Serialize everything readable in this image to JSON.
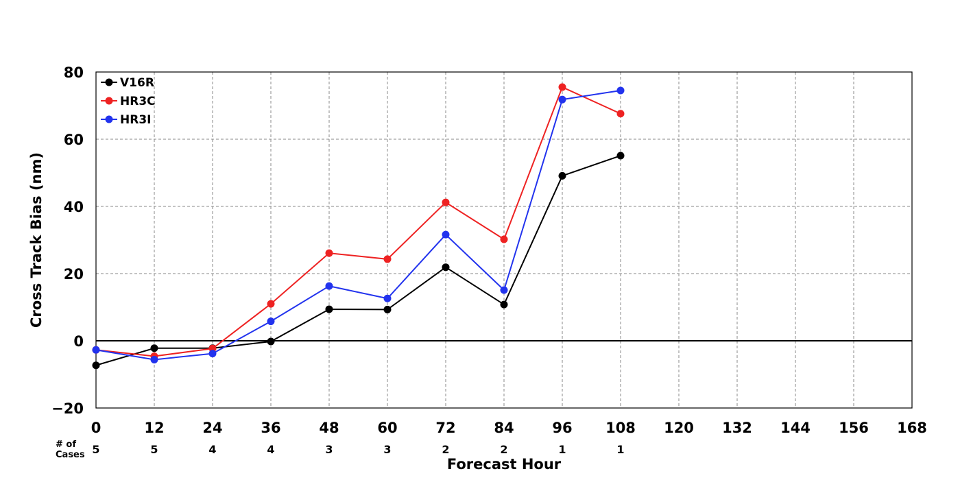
{
  "chart_data": {
    "type": "line",
    "title": "",
    "xlabel": "Forecast Hour",
    "ylabel": "Cross Track Bias (nm)",
    "xlim": [
      0,
      168
    ],
    "ylim": [
      -20,
      80
    ],
    "x_ticks": [
      0,
      12,
      24,
      36,
      48,
      60,
      72,
      84,
      96,
      108,
      120,
      132,
      144,
      156,
      168
    ],
    "y_ticks": [
      -20,
      0,
      20,
      40,
      60,
      80
    ],
    "y_tick_labels": [
      "−20",
      "0",
      "20",
      "40",
      "60",
      "80"
    ],
    "grid": true,
    "legend_position": "top-left",
    "cases_label": "# of Cases",
    "cases_label_lines": [
      "# of",
      "Cases"
    ],
    "case_counts": [
      {
        "x": 0,
        "label": "5"
      },
      {
        "x": 12,
        "label": "5"
      },
      {
        "x": 24,
        "label": "4"
      },
      {
        "x": 36,
        "label": "4"
      },
      {
        "x": 48,
        "label": "3"
      },
      {
        "x": 60,
        "label": "3"
      },
      {
        "x": 72,
        "label": "2"
      },
      {
        "x": 84,
        "label": "2"
      },
      {
        "x": 96,
        "label": "1"
      },
      {
        "x": 108,
        "label": "1"
      }
    ],
    "x": [
      0,
      12,
      24,
      36,
      48,
      60,
      72,
      84,
      96,
      108
    ],
    "series": [
      {
        "name": "V16R",
        "color": "#000000",
        "values": [
          -7.3,
          -2.2,
          -2.2,
          -0.2,
          9.4,
          9.3,
          21.9,
          10.8,
          49.1,
          55.1
        ]
      },
      {
        "name": "HR3C",
        "color": "#ee2222",
        "values": [
          -2.7,
          -4.6,
          -2.3,
          11.0,
          26.1,
          24.3,
          41.2,
          30.2,
          75.5,
          67.6
        ]
      },
      {
        "name": "HR3I",
        "color": "#2233ee",
        "values": [
          -2.7,
          -5.6,
          -3.8,
          5.8,
          16.3,
          12.6,
          31.6,
          15.1,
          71.8,
          74.5
        ]
      }
    ]
  }
}
